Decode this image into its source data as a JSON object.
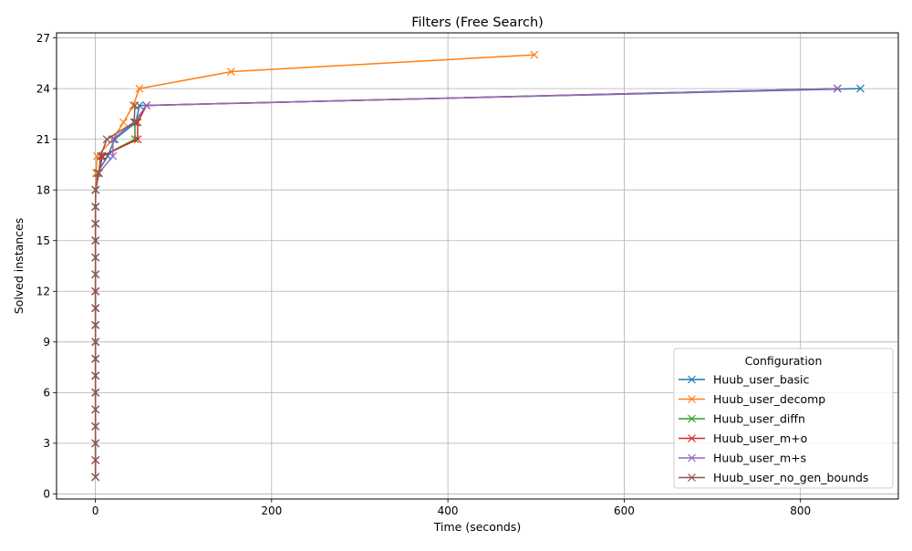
{
  "chart_data": {
    "type": "line",
    "title": "Filters (Free Search)",
    "xlabel": "Time (seconds)",
    "ylabel": "Solved instances",
    "xlim": [
      -44,
      911
    ],
    "ylim": [
      -0.3,
      27.3
    ],
    "x_ticks": [
      0,
      200,
      400,
      600,
      800
    ],
    "y_ticks": [
      0,
      3,
      6,
      9,
      12,
      15,
      18,
      21,
      24,
      27
    ],
    "grid": true,
    "marker": "x",
    "legend": {
      "title": "Configuration",
      "placement": "lower-right"
    },
    "series": [
      {
        "name": "Huub_user_basic",
        "color": "#1f77b4",
        "x": [
          0.2,
          0.2,
          0.2,
          0.2,
          0.2,
          0.2,
          0.2,
          0.2,
          0.2,
          0.2,
          0.2,
          0.2,
          0.2,
          0.2,
          0.2,
          0.2,
          0.2,
          0.3,
          2,
          14,
          22,
          46,
          50,
          868
        ],
        "y": [
          1,
          2,
          3,
          4,
          5,
          6,
          7,
          8,
          9,
          10,
          11,
          12,
          13,
          14,
          15,
          16,
          17,
          18,
          19,
          20,
          21,
          22,
          23,
          24
        ]
      },
      {
        "name": "Huub_user_decomp",
        "color": "#ff7f0e",
        "x": [
          0.2,
          0.2,
          0.2,
          0.2,
          0.2,
          0.2,
          0.2,
          0.2,
          0.2,
          0.2,
          0.2,
          0.2,
          0.2,
          0.2,
          0.2,
          0.2,
          0.2,
          0.3,
          1,
          2,
          20,
          32,
          43,
          50,
          154,
          498
        ],
        "y": [
          1,
          2,
          3,
          4,
          5,
          6,
          7,
          8,
          9,
          10,
          11,
          12,
          13,
          14,
          15,
          16,
          17,
          18,
          19,
          20,
          21,
          22,
          23,
          24,
          25,
          26
        ]
      },
      {
        "name": "Huub_user_diffn",
        "color": "#2ca02c",
        "x": [
          0.2,
          0.2,
          0.2,
          0.2,
          0.2,
          0.2,
          0.2,
          0.2,
          0.2,
          0.2,
          0.2,
          0.2,
          0.2,
          0.2,
          0.2,
          0.2,
          0.2,
          0.3,
          4,
          8,
          45,
          45,
          58,
          842
        ],
        "y": [
          1,
          2,
          3,
          4,
          5,
          6,
          7,
          8,
          9,
          10,
          11,
          12,
          13,
          14,
          15,
          16,
          17,
          18,
          19,
          20,
          21,
          22,
          23,
          24
        ]
      },
      {
        "name": "Huub_user_m+o",
        "color": "#d62728",
        "x": [
          0.2,
          0.2,
          0.2,
          0.2,
          0.2,
          0.2,
          0.2,
          0.2,
          0.2,
          0.2,
          0.2,
          0.2,
          0.2,
          0.2,
          0.2,
          0.2,
          0.2,
          0.3,
          4,
          8,
          48,
          48,
          58,
          842
        ],
        "y": [
          1,
          2,
          3,
          4,
          5,
          6,
          7,
          8,
          9,
          10,
          11,
          12,
          13,
          14,
          15,
          16,
          17,
          18,
          19,
          20,
          21,
          22,
          23,
          24
        ]
      },
      {
        "name": "Huub_user_m+s",
        "color": "#9467bd",
        "x": [
          0.2,
          0.2,
          0.2,
          0.2,
          0.2,
          0.2,
          0.2,
          0.2,
          0.2,
          0.2,
          0.2,
          0.2,
          0.2,
          0.2,
          0.2,
          0.2,
          0.2,
          0.3,
          4,
          20,
          20,
          44,
          58,
          842
        ],
        "y": [
          1,
          2,
          3,
          4,
          5,
          6,
          7,
          8,
          9,
          10,
          11,
          12,
          13,
          14,
          15,
          16,
          17,
          18,
          19,
          20,
          21,
          22,
          23,
          24
        ]
      },
      {
        "name": "Huub_user_no_gen_bounds",
        "color": "#8c564b",
        "x": [
          0.2,
          0.2,
          0.2,
          0.2,
          0.2,
          0.2,
          0.2,
          0.2,
          0.2,
          0.2,
          0.2,
          0.2,
          0.2,
          0.2,
          0.2,
          0.2,
          0.2,
          0.3,
          4,
          6,
          13,
          44,
          45
        ],
        "y": [
          1,
          2,
          3,
          4,
          5,
          6,
          7,
          8,
          9,
          10,
          11,
          12,
          13,
          14,
          15,
          16,
          17,
          18,
          19,
          20,
          21,
          22,
          23
        ]
      }
    ]
  }
}
